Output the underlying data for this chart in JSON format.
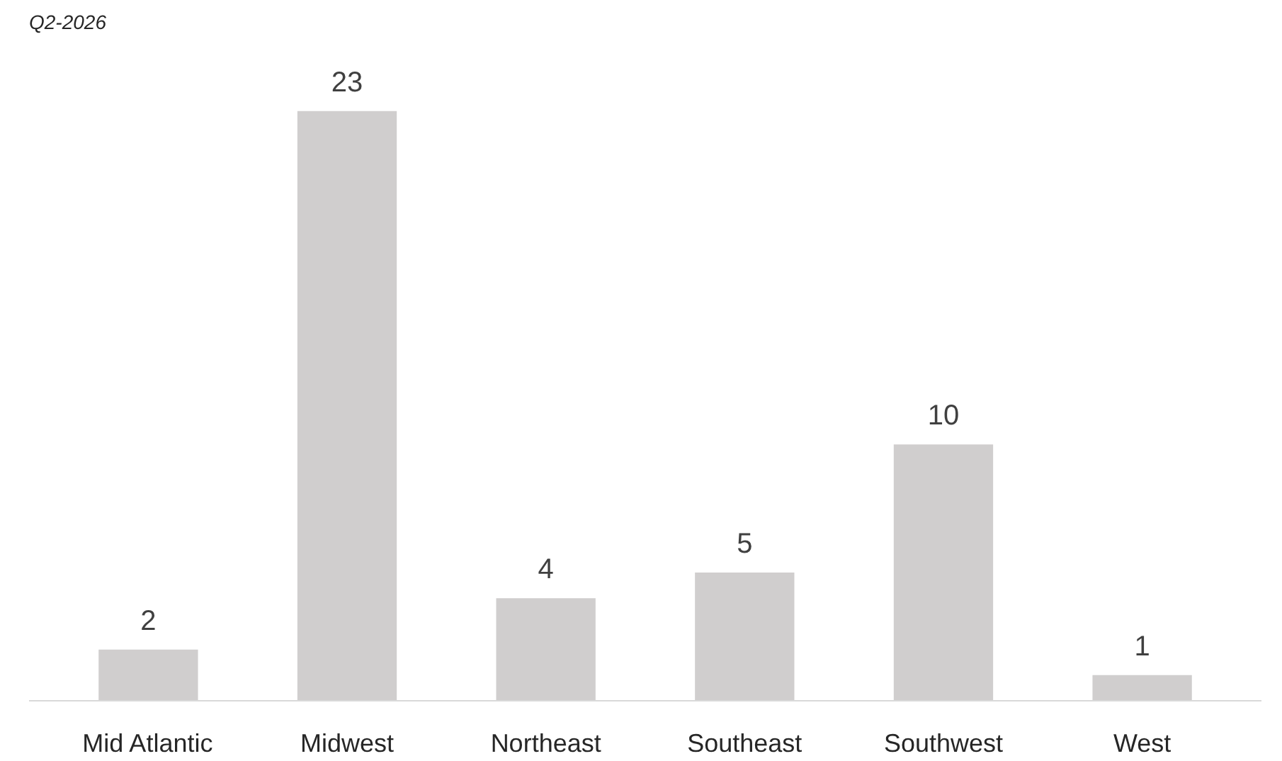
{
  "chart_data": {
    "type": "bar",
    "subtitle": "Q2-2026",
    "categories": [
      "Mid Atlantic",
      "Midwest",
      "Northeast",
      "Southeast",
      "Southwest",
      "West"
    ],
    "values": [
      2,
      23,
      4,
      5,
      10,
      1
    ],
    "color": "#d0cece",
    "data_labels": true,
    "grid": false
  }
}
